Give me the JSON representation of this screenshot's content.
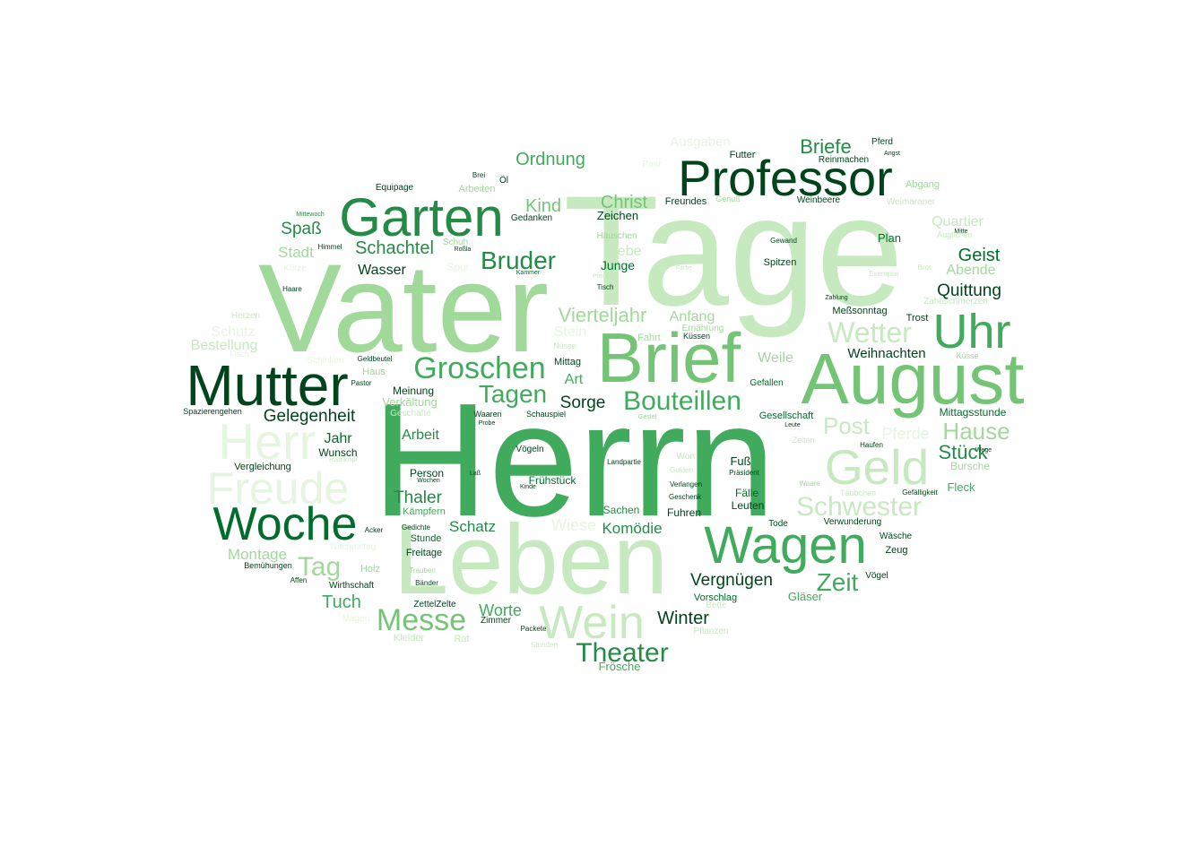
{
  "palette": {
    "g1": "#00441b",
    "g2": "#006d2c",
    "g3": "#238b45",
    "g4": "#41ab5d",
    "g5": "#74c476",
    "g6": "#a1d99b",
    "g7": "#c7e9c0",
    "g8": "#e5f5e0"
  },
  "words": [
    {
      "text": "Herrn",
      "shade": "g4"
    },
    {
      "text": "Vater",
      "shade": "g6"
    },
    {
      "text": "Tage",
      "shade": "g7"
    },
    {
      "text": "Leben",
      "shade": "g7"
    },
    {
      "text": "August",
      "shade": "g5"
    },
    {
      "text": "Brief",
      "shade": "g5"
    },
    {
      "text": "Mutter",
      "shade": "g1"
    },
    {
      "text": "Professor",
      "shade": "g1"
    },
    {
      "text": "Garten",
      "shade": "g3"
    },
    {
      "text": "Wagen",
      "shade": "g4"
    },
    {
      "text": "Woche",
      "shade": "g2"
    },
    {
      "text": "Geld",
      "shade": "g7"
    },
    {
      "text": "Wein",
      "shade": "g7"
    },
    {
      "text": "Uhr",
      "shade": "g4"
    },
    {
      "text": "Herr",
      "shade": "g8"
    },
    {
      "text": "Freude",
      "shade": "g8"
    },
    {
      "text": "Groschen",
      "shade": "g4"
    },
    {
      "text": "Messe",
      "shade": "g5"
    },
    {
      "text": "Theater",
      "shade": "g3"
    },
    {
      "text": "Bouteillen",
      "shade": "g4"
    },
    {
      "text": "Schwester",
      "shade": "g7"
    },
    {
      "text": "Wetter",
      "shade": "g7"
    },
    {
      "text": "Tagen",
      "shade": "g4"
    },
    {
      "text": "Bruder",
      "shade": "g3"
    },
    {
      "text": "Tag",
      "shade": "g6"
    },
    {
      "text": "Zeit",
      "shade": "g4"
    },
    {
      "text": "Hause",
      "shade": "g6"
    },
    {
      "text": "Post",
      "shade": "g7"
    },
    {
      "text": "Briefe",
      "shade": "g3"
    },
    {
      "text": "Vierteljahr",
      "shade": "g6"
    },
    {
      "text": "Gelegenheit",
      "shade": "g1"
    },
    {
      "text": "Ordnung",
      "shade": "g4"
    },
    {
      "text": "Stück",
      "shade": "g3"
    },
    {
      "text": "Geist",
      "shade": "g2"
    },
    {
      "text": "Quittung",
      "shade": "g1"
    },
    {
      "text": "Christ",
      "shade": "g5"
    },
    {
      "text": "Kind",
      "shade": "g5"
    },
    {
      "text": "Schachtel",
      "shade": "g3"
    },
    {
      "text": "Spaß",
      "shade": "g3"
    },
    {
      "text": "Stadt",
      "shade": "g6"
    },
    {
      "text": "Wasser",
      "shade": "g1"
    },
    {
      "text": "Tuch",
      "shade": "g4"
    },
    {
      "text": "Worte",
      "shade": "g4"
    },
    {
      "text": "Winter",
      "shade": "g1"
    },
    {
      "text": "Vergnügen",
      "shade": "g1"
    },
    {
      "text": "Weihnachten",
      "shade": "g1"
    },
    {
      "text": "Thaler",
      "shade": "g3"
    },
    {
      "text": "Schatz",
      "shade": "g3"
    },
    {
      "text": "Sorge",
      "shade": "g1"
    },
    {
      "text": "Arbeit",
      "shade": "g3"
    },
    {
      "text": "Montage",
      "shade": "g6"
    },
    {
      "text": "Anfang",
      "shade": "g6"
    },
    {
      "text": "Weile",
      "shade": "g6"
    },
    {
      "text": "Liebe",
      "shade": "g7"
    },
    {
      "text": "Junge",
      "shade": "g2"
    },
    {
      "text": "Abende",
      "shade": "g6"
    },
    {
      "text": "Quartier",
      "shade": "g7"
    },
    {
      "text": "Pferde",
      "shade": "g8"
    },
    {
      "text": "Bestellung",
      "shade": "g7"
    },
    {
      "text": "Schutz",
      "shade": "g8"
    },
    {
      "text": "Komödie",
      "shade": "g3"
    },
    {
      "text": "Wiese",
      "shade": "g8"
    },
    {
      "text": "Jahr",
      "shade": "g2"
    },
    {
      "text": "Art",
      "shade": "g4"
    },
    {
      "text": "Stein",
      "shade": "g8"
    },
    {
      "text": "Zeichen",
      "shade": "g1"
    },
    {
      "text": "Ausgaben",
      "shade": "g8"
    },
    {
      "text": "Plan",
      "shade": "g2"
    },
    {
      "text": "Fleck",
      "shade": "g4"
    },
    {
      "text": "Fuß",
      "shade": "g1"
    },
    {
      "text": "Leuten",
      "shade": "g1"
    },
    {
      "text": "Fälle",
      "shade": "g2"
    },
    {
      "text": "Fuhren",
      "shade": "g1"
    },
    {
      "text": "Sachen",
      "shade": "g3"
    },
    {
      "text": "Gläser",
      "shade": "g4"
    },
    {
      "text": "Vorschlag",
      "shade": "g2"
    },
    {
      "text": "Frösche",
      "shade": "g4"
    },
    {
      "text": "Meinung",
      "shade": "g1"
    },
    {
      "text": "Verkältung",
      "shade": "g6"
    },
    {
      "text": "Mittagsstunde",
      "shade": "g2"
    },
    {
      "text": "Gesellschaft",
      "shade": "g2"
    },
    {
      "text": "Person",
      "shade": "g1"
    },
    {
      "text": "Frühstück",
      "shade": "g2"
    },
    {
      "text": "Kämpfern",
      "shade": "g4"
    },
    {
      "text": "Stunde",
      "shade": "g2"
    },
    {
      "text": "Freitage",
      "shade": "g1"
    },
    {
      "text": "Wunsch",
      "shade": "g1"
    },
    {
      "text": "Vergleichung",
      "shade": "g1"
    },
    {
      "text": "Spazierengehen",
      "shade": "g1"
    },
    {
      "text": "Meßsonntag",
      "shade": "g1"
    },
    {
      "text": "Trost",
      "shade": "g1"
    },
    {
      "text": "Spitzen",
      "shade": "g1"
    },
    {
      "text": "Gedanken",
      "shade": "g1"
    },
    {
      "text": "Equipage",
      "shade": "g1"
    },
    {
      "text": "Arbeiten",
      "shade": "g6"
    },
    {
      "text": "Häuschen",
      "shade": "g6"
    },
    {
      "text": "Freundes",
      "shade": "g1"
    },
    {
      "text": "Weinbeere",
      "shade": "g1"
    },
    {
      "text": "Futter",
      "shade": "g1"
    },
    {
      "text": "Pferd",
      "shade": "g1"
    },
    {
      "text": "Reinmachen",
      "shade": "g1"
    },
    {
      "text": "Abgang",
      "shade": "g6"
    },
    {
      "text": "Weimaraner",
      "shade": "g7"
    },
    {
      "text": "Gefallen",
      "shade": "g2"
    },
    {
      "text": "Zeug",
      "shade": "g1"
    },
    {
      "text": "Vögel",
      "shade": "g1"
    },
    {
      "text": "Wäsche",
      "shade": "g1"
    },
    {
      "text": "Verwunderung",
      "shade": "g1"
    },
    {
      "text": "Tode",
      "shade": "g1"
    },
    {
      "text": "Gefälligkeit",
      "shade": "g1"
    },
    {
      "text": "Haufen",
      "shade": "g1"
    },
    {
      "text": "Bursche",
      "shade": "g6"
    },
    {
      "text": "Zahnschmerzen",
      "shade": "g7"
    },
    {
      "text": "Ernährung",
      "shade": "g6"
    },
    {
      "text": "Küssen",
      "shade": "g1"
    },
    {
      "text": "Fahrt",
      "shade": "g6"
    },
    {
      "text": "Mittag",
      "shade": "g1"
    },
    {
      "text": "Haus",
      "shade": "g6"
    },
    {
      "text": "Pastor",
      "shade": "g1"
    },
    {
      "text": "Waaren",
      "shade": "g1"
    },
    {
      "text": "Schauspiel",
      "shade": "g1"
    },
    {
      "text": "Vögeln",
      "shade": "g1"
    },
    {
      "text": "Himmel",
      "shade": "g1"
    },
    {
      "text": "Haare",
      "shade": "g1"
    },
    {
      "text": "Mittewoch",
      "shade": "g3"
    },
    {
      "text": "Schuh",
      "shade": "g6"
    },
    {
      "text": "Roßla",
      "shade": "g1"
    },
    {
      "text": "Spur",
      "shade": "g8"
    },
    {
      "text": "Kammer",
      "shade": "g2"
    },
    {
      "text": "Öl",
      "shade": "g1"
    },
    {
      "text": "Brei",
      "shade": "g1"
    },
    {
      "text": "Holz",
      "shade": "g6"
    },
    {
      "text": "Wirthschaft",
      "shade": "g1"
    },
    {
      "text": "Bemühungen",
      "shade": "g1"
    },
    {
      "text": "Affen",
      "shade": "g1"
    },
    {
      "text": "Acker",
      "shade": "g1"
    },
    {
      "text": "Gedichte",
      "shade": "g1"
    },
    {
      "text": "Trauben",
      "shade": "g6"
    },
    {
      "text": "Bänder",
      "shade": "g1"
    },
    {
      "text": "ZettelZelte",
      "shade": "g1"
    },
    {
      "text": "Zimmer",
      "shade": "g1"
    },
    {
      "text": "Packete",
      "shade": "g1"
    },
    {
      "text": "Stunden",
      "shade": "g7"
    },
    {
      "text": "Kleider",
      "shade": "g7"
    },
    {
      "text": "Rat",
      "shade": "g7"
    },
    {
      "text": "Magen",
      "shade": "g8"
    },
    {
      "text": "Landpartie",
      "shade": "g1"
    },
    {
      "text": "Präsident",
      "shade": "g1"
    },
    {
      "text": "Verlangen",
      "shade": "g1"
    },
    {
      "text": "Geschenk",
      "shade": "g1"
    },
    {
      "text": "Wort",
      "shade": "g7"
    },
    {
      "text": "Gulden",
      "shade": "g7"
    },
    {
      "text": "Waare",
      "shade": "g6"
    },
    {
      "text": "Zeiten",
      "shade": "g7"
    },
    {
      "text": "Wege",
      "shade": "g1"
    },
    {
      "text": "Leute",
      "shade": "g1"
    },
    {
      "text": "Mitte",
      "shade": "g1"
    },
    {
      "text": "Gewand",
      "shade": "g1"
    },
    {
      "text": "Zahlung",
      "shade": "g1"
    },
    {
      "text": "Brot",
      "shade": "g7"
    },
    {
      "text": "Exemplar",
      "shade": "g7"
    },
    {
      "text": "Farbe",
      "shade": "g7"
    },
    {
      "text": "Genuß",
      "shade": "g6"
    },
    {
      "text": "Tisch",
      "shade": "g1"
    },
    {
      "text": "Probe",
      "shade": "g1"
    },
    {
      "text": "Laß",
      "shade": "g1"
    },
    {
      "text": "Wochen",
      "shade": "g1"
    },
    {
      "text": "Kinde",
      "shade": "g1"
    },
    {
      "text": "Geschäfte",
      "shade": "g7"
    },
    {
      "text": "Geldbeutel",
      "shade": "g1"
    },
    {
      "text": "Rathkopf",
      "shade": "g7"
    },
    {
      "text": "Fisch",
      "shade": "g8"
    },
    {
      "text": "Schinken",
      "shade": "g8"
    },
    {
      "text": "Herzen",
      "shade": "g7"
    },
    {
      "text": "Kürze",
      "shade": "g8"
    },
    {
      "text": "Nachmittag",
      "shade": "g8"
    },
    {
      "text": "Angst",
      "shade": "g1"
    },
    {
      "text": "Paar",
      "shade": "g8"
    },
    {
      "text": "Küsse",
      "shade": "g6"
    },
    {
      "text": "Gestel",
      "shade": "g6"
    },
    {
      "text": "Täubchen",
      "shade": "g7"
    },
    {
      "text": "Pflanzen",
      "shade": "g7"
    },
    {
      "text": "Bette",
      "shade": "g7"
    },
    {
      "text": "Nüsse",
      "shade": "g7"
    },
    {
      "text": "Pfennige",
      "shade": "g7"
    },
    {
      "text": "Äuglichen",
      "shade": "g7"
    }
  ]
}
